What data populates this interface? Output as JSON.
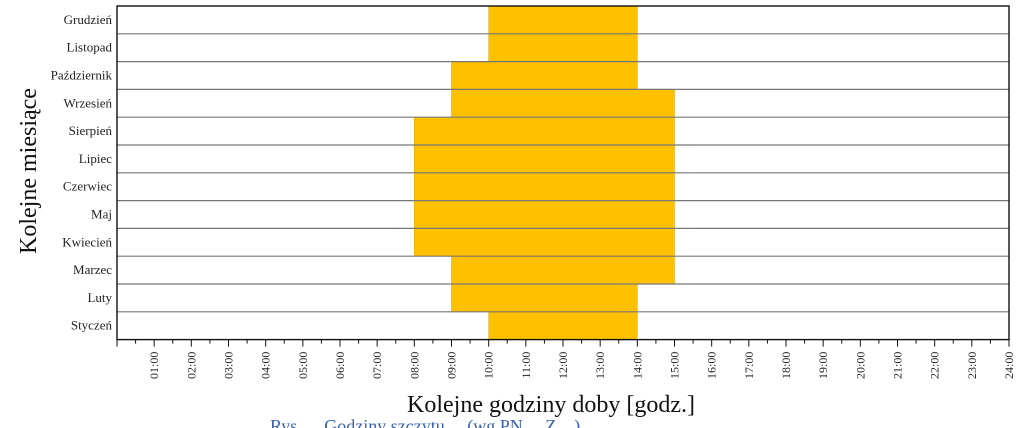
{
  "chart_data": {
    "type": "bar",
    "orientation": "horizontal-range",
    "title": "",
    "xlabel": "Kolejne godziny doby [godz.]",
    "ylabel": "Kolejne miesiące",
    "x_ticks": [
      "01:00",
      "02:00",
      "03:00",
      "04:00",
      "05:00",
      "06:00",
      "07:00",
      "08:00",
      "09:00",
      "10:00",
      "11:00",
      "12:00",
      "13:00",
      "14:00",
      "15:00",
      "16:00",
      "17:00",
      "18:00",
      "19:00",
      "20:00",
      "21:00",
      "22:00",
      "23:00",
      "24:00"
    ],
    "xlim": [
      0,
      24
    ],
    "grid": false,
    "bar_color": "#FFC000",
    "months": [
      {
        "label": "Styczeń",
        "start": 10,
        "end": 14
      },
      {
        "label": "Luty",
        "start": 9,
        "end": 14
      },
      {
        "label": "Marzec",
        "start": 9,
        "end": 15
      },
      {
        "label": "Kwiecień",
        "start": 8,
        "end": 15
      },
      {
        "label": "Maj",
        "start": 8,
        "end": 15
      },
      {
        "label": "Czerwiec",
        "start": 8,
        "end": 15
      },
      {
        "label": "Lipiec",
        "start": 8,
        "end": 15
      },
      {
        "label": "Sierpień",
        "start": 8,
        "end": 15
      },
      {
        "label": "Wrzesień",
        "start": 9,
        "end": 15
      },
      {
        "label": "Październik",
        "start": 9,
        "end": 14
      },
      {
        "label": "Listopad",
        "start": 10,
        "end": 14
      },
      {
        "label": "Grudzień",
        "start": 10,
        "end": 14
      }
    ]
  },
  "caption": "Rys. ... Godziny szczytu ... (wg PN ... Z ...)"
}
